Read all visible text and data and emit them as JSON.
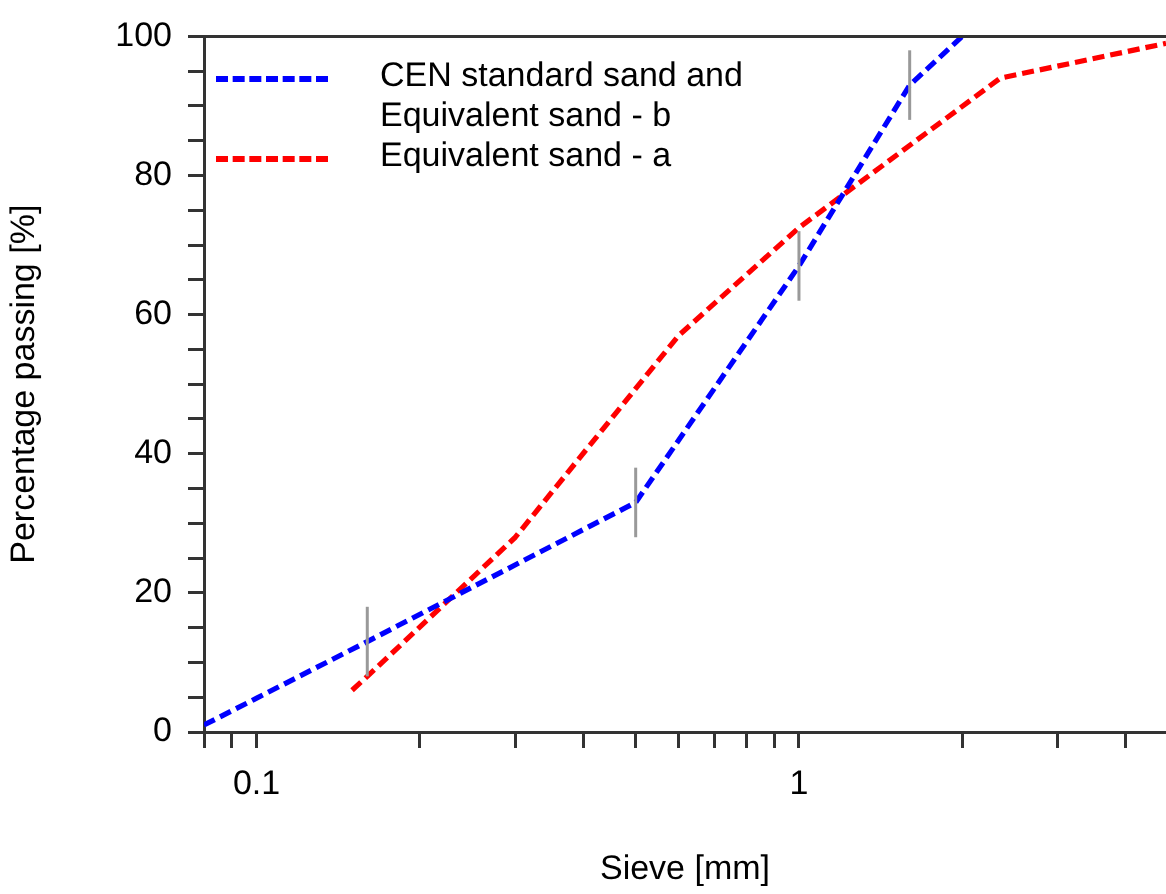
{
  "chart_data": {
    "type": "line",
    "xlabel": "Sieve [mm]",
    "ylabel": "Percentage passing [%]",
    "log": "x",
    "xlim": [
      0.08,
      4.75
    ],
    "xticks": [
      {
        "value": 0.08,
        "label": null
      },
      {
        "value": 0.09,
        "label": null
      },
      0.1,
      {
        "value": 0.2,
        "label": null
      },
      {
        "value": 0.3,
        "label": null
      },
      {
        "value": 0.4,
        "label": null
      },
      {
        "value": 0.5,
        "label": null
      },
      {
        "value": 0.6,
        "label": null
      },
      {
        "value": 0.7,
        "label": null
      },
      {
        "value": 0.8,
        "label": null
      },
      {
        "value": 0.9,
        "label": null
      },
      1,
      {
        "value": 2,
        "label": null
      },
      {
        "value": 3,
        "label": null
      },
      {
        "value": 4,
        "label": null
      }
    ],
    "ylim": [
      0,
      100
    ],
    "yticks": [
      0,
      {
        "value": 5,
        "label": null
      },
      {
        "value": 10,
        "label": null
      },
      {
        "value": 15,
        "label": null
      },
      20,
      {
        "value": 25,
        "label": null
      },
      {
        "value": 30,
        "label": null
      },
      {
        "value": 35,
        "label": null
      },
      40,
      {
        "value": 45,
        "label": null
      },
      {
        "value": 50,
        "label": null
      },
      {
        "value": 55,
        "label": null
      },
      60,
      {
        "value": 65,
        "label": null
      },
      {
        "value": 70,
        "label": null
      },
      {
        "value": 75,
        "label": null
      },
      80,
      {
        "value": 85,
        "label": null
      },
      {
        "value": 90,
        "label": null
      },
      {
        "value": 95,
        "label": null
      },
      100
    ],
    "grid": false,
    "legend": "top left",
    "marker": "none",
    "line_style": "dashed",
    "series": [
      {
        "name": "CEN standard sand and Equivalent sand - b",
        "color": "#0000ff",
        "x": [
          0.08,
          0.16,
          0.5,
          1,
          1.6,
          2
        ],
        "values": [
          1,
          13,
          33,
          67,
          93,
          100
        ],
        "errors": [
          null,
          5,
          5,
          5,
          5,
          null
        ]
      },
      {
        "name": "Equivalent sand - a",
        "color": "#ff0000",
        "x": [
          0.15,
          0.16,
          0.3,
          0.6,
          1,
          2.35,
          4.75
        ],
        "values": [
          6,
          8,
          28,
          57,
          72.5,
          94,
          99
        ]
      }
    ]
  }
}
